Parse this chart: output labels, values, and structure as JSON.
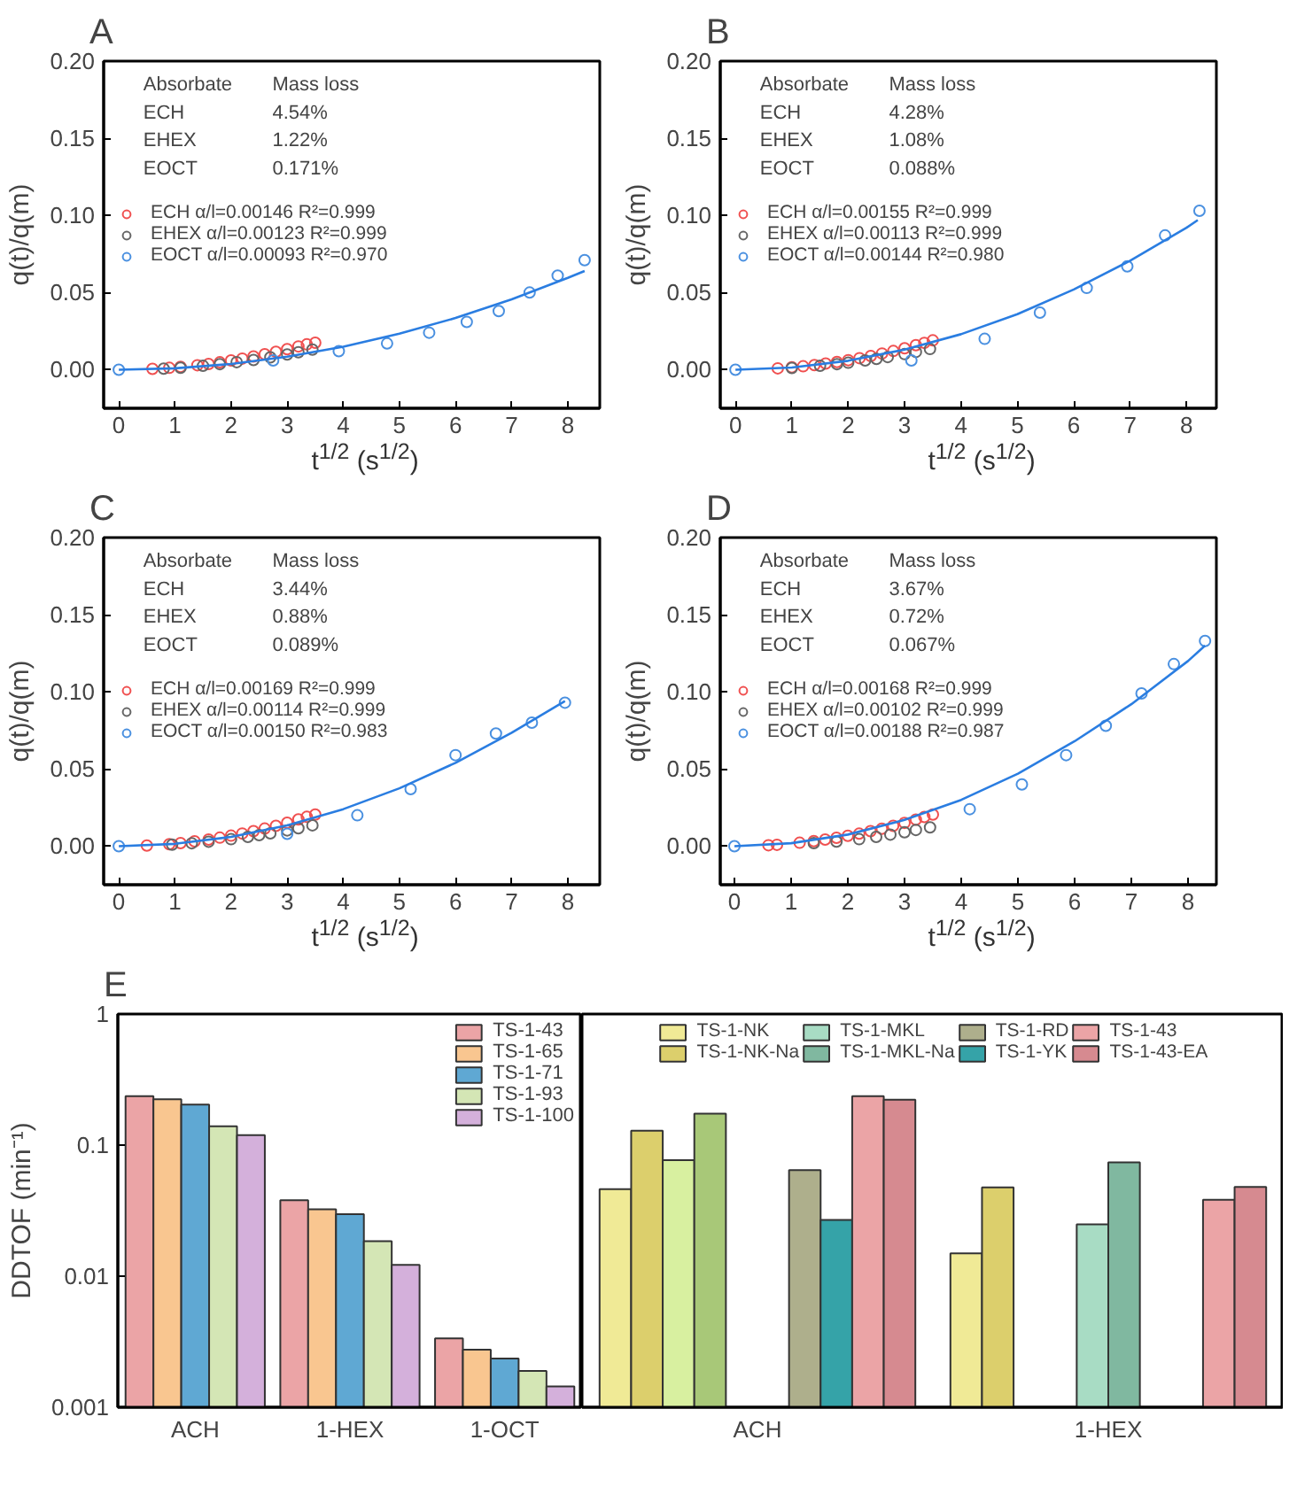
{
  "chart_data": [
    {
      "type": "scatter",
      "title": "A",
      "xlabel": "t$^{1/2}$ (s$^{1/2}$)",
      "ylabel": "q(t)/q(m)",
      "xlim": [
        -0.27,
        8.57
      ],
      "ylim": [
        -0.025,
        0.2
      ],
      "xticks": [
        0,
        1,
        2,
        3,
        4,
        5,
        6,
        7,
        8
      ],
      "yticks": [
        {
          "value": 0,
          "label": "0.00"
        },
        {
          "value": 0.05,
          "label": "0.05"
        },
        {
          "value": 0.1,
          "label": "0.10"
        },
        {
          "value": 0.15,
          "label": "0.15"
        },
        {
          "value": 0.2,
          "label": "0.20"
        }
      ],
      "marker": "circle",
      "legend": "left",
      "annotations": [
        "Absorbate",
        "Mass loss",
        "ECH",
        "4.54%",
        "EHEX",
        "1.22%",
        "EOCT",
        "0.171%"
      ],
      "series": [
        {
          "name": "ECH α/l=0.00146 R²=0.999",
          "color": "#f05050",
          "x": [
            0.6,
            0.9,
            1.1,
            1.4,
            1.6,
            1.8,
            2.0,
            2.2,
            2.4,
            2.6,
            2.8,
            3.0,
            3.2,
            3.35,
            3.5
          ],
          "values": [
            0.0005,
            0.0012,
            0.0018,
            0.0029,
            0.0037,
            0.0048,
            0.006,
            0.0072,
            0.0086,
            0.01,
            0.0116,
            0.0133,
            0.0151,
            0.0164,
            0.0175
          ]
        },
        {
          "name": "EHEX α/l=0.00123 R²=0.999",
          "color": "#666666",
          "x": [
            0.8,
            1.1,
            1.5,
            1.8,
            2.1,
            2.4,
            2.7,
            3.0,
            3.2,
            3.45
          ],
          "values": [
            0.0007,
            0.0013,
            0.0025,
            0.0036,
            0.0049,
            0.0063,
            0.008,
            0.0099,
            0.0113,
            0.013
          ]
        },
        {
          "name": "EOCT α/l=0.00093 R²=0.970",
          "color": "#4a90e0",
          "x": [
            0,
            2.75,
            3.92,
            4.78,
            5.53,
            6.2,
            6.77,
            7.32,
            7.82,
            8.3
          ],
          "values": [
            0,
            0.006,
            0.012,
            0.017,
            0.024,
            0.031,
            0.038,
            0.05,
            0.061,
            0.071
          ]
        },
        {
          "type": "line",
          "marker": "none",
          "color": "#2a7de1",
          "x": [
            0,
            1,
            2,
            3,
            4,
            5,
            6,
            7,
            8,
            8.3
          ],
          "values": [
            0,
            0.0009,
            0.0037,
            0.0084,
            0.0149,
            0.0233,
            0.0335,
            0.0456,
            0.0595,
            0.064
          ]
        }
      ]
    },
    {
      "type": "scatter",
      "title": "B",
      "xlabel": "t$^{1/2}$ (s$^{1/2}$)",
      "ylabel": "q(t)/q(m)",
      "xlim": [
        -0.27,
        8.53
      ],
      "ylim": [
        -0.025,
        0.2
      ],
      "xticks": [
        0,
        1,
        2,
        3,
        4,
        5,
        6,
        7,
        8
      ],
      "yticks": [
        {
          "value": 0,
          "label": "0.00"
        },
        {
          "value": 0.05,
          "label": "0.05"
        },
        {
          "value": 0.1,
          "label": "0.10"
        },
        {
          "value": 0.15,
          "label": "0.15"
        },
        {
          "value": 0.2,
          "label": "0.20"
        }
      ],
      "marker": "circle",
      "legend": "left",
      "annotations": [
        "Absorbate",
        "Mass loss",
        "ECH",
        "4.28%",
        "EHEX",
        "1.08%",
        "EOCT",
        "0.088%"
      ],
      "series": [
        {
          "name": "ECH α/l=0.00155 R²=0.999",
          "color": "#f05050",
          "x": [
            0.75,
            1.0,
            1.2,
            1.4,
            1.6,
            1.8,
            2.0,
            2.2,
            2.4,
            2.6,
            2.8,
            3.0,
            3.2,
            3.35,
            3.5
          ],
          "values": [
            0.0009,
            0.0016,
            0.0022,
            0.003,
            0.004,
            0.005,
            0.0062,
            0.0075,
            0.0089,
            0.0105,
            0.0121,
            0.0139,
            0.0159,
            0.0174,
            0.019
          ]
        },
        {
          "name": "EHEX α/l=0.00113 R²=0.999",
          "color": "#666666",
          "x": [
            1.0,
            1.5,
            1.8,
            2.0,
            2.3,
            2.5,
            2.7,
            3.0,
            3.2,
            3.45
          ],
          "values": [
            0.0011,
            0.0025,
            0.0036,
            0.0045,
            0.006,
            0.007,
            0.0082,
            0.0101,
            0.0115,
            0.0134
          ]
        },
        {
          "name": "EOCT α/l=0.00144 R²=0.980",
          "color": "#4a90e0",
          "x": [
            0,
            3.12,
            4.42,
            5.4,
            6.23,
            6.95,
            7.62,
            8.23
          ],
          "values": [
            0,
            0.006,
            0.02,
            0.037,
            0.053,
            0.067,
            0.087,
            0.103
          ]
        },
        {
          "type": "line",
          "marker": "none",
          "color": "#2a7de1",
          "x": [
            0,
            1,
            2,
            3,
            4,
            5,
            6,
            7,
            8,
            8.2
          ],
          "values": [
            0,
            0.0014,
            0.0058,
            0.013,
            0.023,
            0.036,
            0.052,
            0.0706,
            0.092,
            0.097
          ]
        }
      ]
    },
    {
      "type": "scatter",
      "title": "C",
      "xlabel": "t$^{1/2}$ (s$^{1/2}$)",
      "ylabel": "q(t)/q(m)",
      "xlim": [
        -0.27,
        8.57
      ],
      "ylim": [
        -0.025,
        0.2
      ],
      "xticks": [
        0,
        1,
        2,
        3,
        4,
        5,
        6,
        7,
        8
      ],
      "yticks": [
        {
          "value": 0,
          "label": "0.00"
        },
        {
          "value": 0.05,
          "label": "0.05"
        },
        {
          "value": 0.1,
          "label": "0.10"
        },
        {
          "value": 0.15,
          "label": "0.15"
        },
        {
          "value": 0.2,
          "label": "0.20"
        }
      ],
      "marker": "circle",
      "legend": "left",
      "annotations": [
        "Absorbate",
        "Mass loss",
        "ECH",
        "3.44%",
        "EHEX",
        "0.88%",
        "EOCT",
        "0.089%"
      ],
      "series": [
        {
          "name": "ECH α/l=0.00169 R²=0.999",
          "color": "#f05050",
          "x": [
            0.5,
            0.9,
            1.1,
            1.35,
            1.6,
            1.8,
            2.0,
            2.2,
            2.4,
            2.6,
            2.8,
            3.0,
            3.2,
            3.35,
            3.5
          ],
          "values": [
            0.0004,
            0.0013,
            0.002,
            0.0031,
            0.0043,
            0.0055,
            0.0068,
            0.0082,
            0.0097,
            0.0114,
            0.0132,
            0.0152,
            0.0173,
            0.019,
            0.0205
          ]
        },
        {
          "name": "EHEX α/l=0.00114 R²=0.999",
          "color": "#666666",
          "x": [
            0.95,
            1.3,
            1.6,
            2.0,
            2.3,
            2.5,
            2.7,
            3.0,
            3.2,
            3.45
          ],
          "values": [
            0.001,
            0.0019,
            0.0029,
            0.0045,
            0.006,
            0.0071,
            0.0083,
            0.0102,
            0.0116,
            0.0135
          ]
        },
        {
          "name": "EOCT α/l=0.00150 R²=0.983",
          "color": "#4a90e0",
          "x": [
            0,
            3.0,
            4.25,
            5.2,
            6.0,
            6.72,
            7.36,
            7.95
          ],
          "values": [
            0,
            0.008,
            0.02,
            0.037,
            0.059,
            0.073,
            0.08,
            0.093
          ]
        },
        {
          "type": "line",
          "marker": "none",
          "color": "#2a7de1",
          "x": [
            0,
            1,
            2,
            3,
            4,
            5,
            6,
            7,
            7.95
          ],
          "values": [
            0,
            0.0015,
            0.006,
            0.0135,
            0.024,
            0.0375,
            0.054,
            0.0735,
            0.094
          ]
        }
      ]
    },
    {
      "type": "scatter",
      "title": "D",
      "xlabel": "t$^{1/2}$ (s$^{1/2}$)",
      "ylabel": "q(t)/q(m)",
      "xlim": [
        -0.25,
        8.5
      ],
      "ylim": [
        -0.025,
        0.2
      ],
      "xticks": [
        0,
        1,
        2,
        3,
        4,
        5,
        6,
        7,
        8
      ],
      "yticks": [
        {
          "value": 0,
          "label": "0.00"
        },
        {
          "value": 0.05,
          "label": "0.05"
        },
        {
          "value": 0.1,
          "label": "0.10"
        },
        {
          "value": 0.15,
          "label": "0.15"
        },
        {
          "value": 0.2,
          "label": "0.20"
        }
      ],
      "marker": "circle",
      "legend": "left",
      "annotations": [
        "Absorbate",
        "Mass loss",
        "ECH",
        "3.67%",
        "EHEX",
        "0.72%",
        "EOCT",
        "0.067%"
      ],
      "series": [
        {
          "name": "ECH α/l=0.00168 R²=0.999",
          "color": "#f05050",
          "x": [
            0.6,
            0.75,
            1.15,
            1.4,
            1.6,
            1.8,
            2.0,
            2.2,
            2.4,
            2.6,
            2.8,
            3.0,
            3.2,
            3.35,
            3.5
          ],
          "values": [
            0.0006,
            0.0009,
            0.0022,
            0.0033,
            0.0043,
            0.0054,
            0.0067,
            0.0081,
            0.0097,
            0.0113,
            0.0132,
            0.0151,
            0.0172,
            0.0189,
            0.0205
          ]
        },
        {
          "name": "EHEX α/l=0.00102 R²=0.999",
          "color": "#666666",
          "x": [
            1.4,
            1.8,
            2.2,
            2.5,
            2.75,
            3.0,
            3.2,
            3.45
          ],
          "values": [
            0.002,
            0.003,
            0.0045,
            0.006,
            0.0075,
            0.009,
            0.0105,
            0.0122
          ]
        },
        {
          "name": "EOCT α/l=0.00188 R²=0.987",
          "color": "#4a90e0",
          "x": [
            0,
            4.15,
            5.07,
            5.85,
            6.55,
            7.18,
            7.75,
            8.3
          ],
          "values": [
            0,
            0.024,
            0.04,
            0.059,
            0.078,
            0.099,
            0.118,
            0.133
          ]
        },
        {
          "type": "line",
          "marker": "none",
          "color": "#2a7de1",
          "x": [
            0,
            1,
            2,
            3,
            4,
            5,
            6,
            7,
            8,
            8.3
          ],
          "values": [
            0,
            0.0019,
            0.0075,
            0.017,
            0.03,
            0.047,
            0.068,
            0.092,
            0.12,
            0.13
          ]
        }
      ]
    },
    {
      "type": "bar",
      "title": "E",
      "ylabel": "DDTOF (min⁻¹)",
      "log": true,
      "ylim": [
        0.001,
        1
      ],
      "yticks": [
        0.001,
        0.01,
        0.1,
        1
      ],
      "categories": [
        "ACH",
        "1-HEX",
        "1-OCT"
      ],
      "legend": "top right",
      "series": [
        {
          "name": "TS-1-43",
          "color": "#eba4a6",
          "values": [
            0.236,
            0.038,
            0.00335
          ]
        },
        {
          "name": "TS-1-65",
          "color": "#f9c690",
          "values": [
            0.224,
            0.0324,
            0.00275
          ]
        },
        {
          "name": "TS-1-71",
          "color": "#5fa8d3",
          "values": [
            0.204,
            0.0297,
            0.00235
          ]
        },
        {
          "name": "TS-1-93",
          "color": "#d4e6b5",
          "values": [
            0.139,
            0.0185,
            0.00189
          ]
        },
        {
          "name": "TS-1-100",
          "color": "#d4b0db",
          "values": [
            0.119,
            0.0122,
            0.00144
          ]
        }
      ]
    },
    {
      "type": "bar",
      "log": true,
      "ylim": [
        0.001,
        1
      ],
      "categories": [
        "ACH",
        "1-HEX"
      ],
      "legend": "top",
      "tick_labels": "x",
      "series": [
        {
          "name": "TS-1-NK",
          "color": "#f0ea96",
          "values": [
            0.0461,
            0.0149
          ]
        },
        {
          "name": "TS-1-NK-Na",
          "color": "#dccf6c",
          "values": [
            0.129,
            0.0475
          ]
        },
        {
          "color": "#d8f0a0",
          "values": [
            0.0769,
            null
          ]
        },
        {
          "color": "#a8c878",
          "values": [
            0.174,
            null
          ]
        },
        {
          "name": "TS-1-MKL",
          "color": "#a8dcc4",
          "values": [
            null,
            0.0248
          ]
        },
        {
          "name": "TS-1-MKL-Na",
          "color": "#80b8a0",
          "values": [
            null,
            0.0739
          ]
        },
        {
          "name": "TS-1-RD",
          "color": "#aeaf8c",
          "values": [
            0.0644,
            null
          ]
        },
        {
          "name": "TS-1-YK",
          "color": "#35a3a8",
          "values": [
            0.0269,
            null
          ]
        },
        {
          "name": "TS-1-43",
          "color": "#eba4a6",
          "values": [
            0.236,
            0.0383
          ]
        },
        {
          "name": "TS-1-43-EA",
          "color": "#d68a90",
          "values": [
            0.222,
            0.048
          ]
        }
      ]
    }
  ]
}
